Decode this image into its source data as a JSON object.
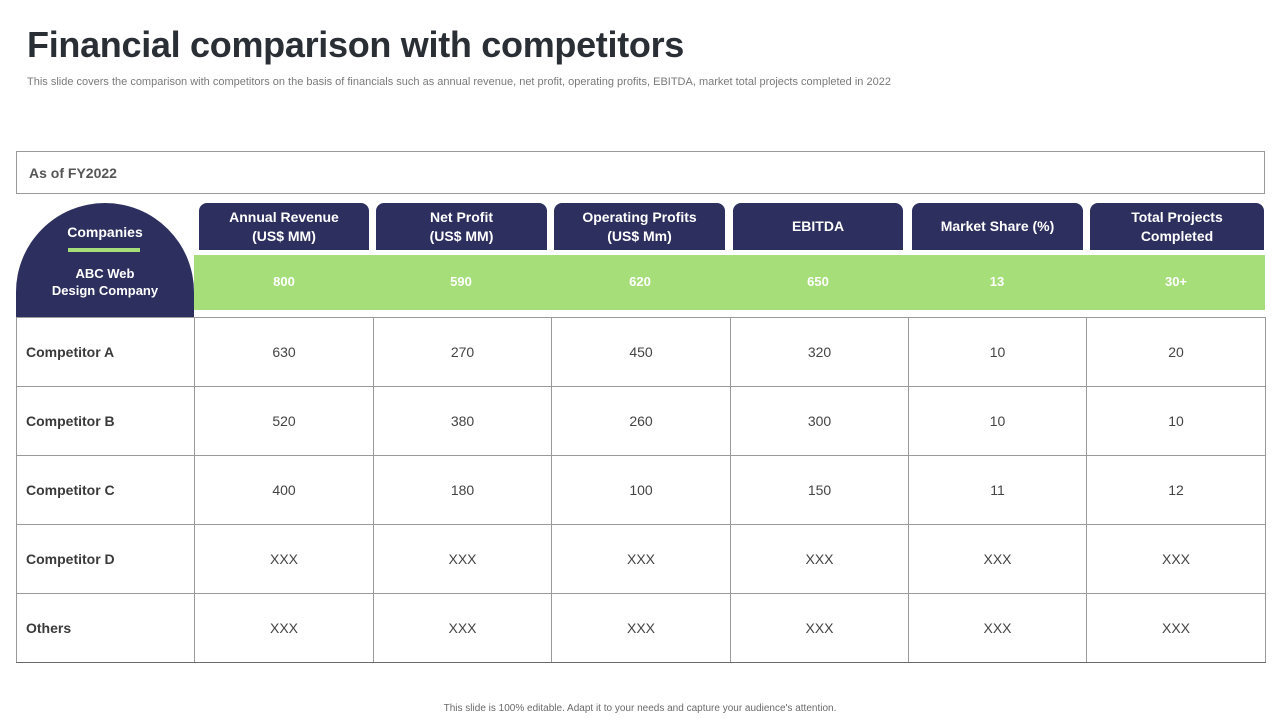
{
  "title": "Financial comparison with competitors",
  "subtitle": "This slide covers the comparison with competitors on the basis of financials such as annual revenue, net profit, operating profits, EBITDA, market total projects completed in 2022",
  "as_of": "As of FY2022",
  "companies_label": "Companies",
  "own_company": "ABC Web\nDesign Company",
  "columns": [
    "Annual Revenue\n(US$ MM)",
    "Net Profit\n(US$ MM)",
    "Operating Profits\n(US$ Mm)",
    "EBITDA",
    "Market Share (%)",
    "Total Projects\nCompleted"
  ],
  "own_values": [
    "800",
    "590",
    "620",
    "650",
    "13",
    "30+"
  ],
  "rows": [
    {
      "name": "Competitor A",
      "values": [
        "630",
        "270",
        "450",
        "320",
        "10",
        "20"
      ]
    },
    {
      "name": "Competitor B",
      "values": [
        "520",
        "380",
        "260",
        "300",
        "10",
        "10"
      ]
    },
    {
      "name": "Competitor C",
      "values": [
        "400",
        "180",
        "100",
        "150",
        "11",
        "12"
      ]
    },
    {
      "name": "Competitor D",
      "values": [
        "XXX",
        "XXX",
        "XXX",
        "XXX",
        "XXX",
        "XXX"
      ]
    },
    {
      "name": "Others",
      "values": [
        "XXX",
        "XXX",
        "XXX",
        "XXX",
        "XXX",
        "XXX"
      ]
    }
  ],
  "footer": "This slide is 100% editable.  Adapt it to your needs and capture your audience's attention.",
  "colors": {
    "navy": "#2d2f5e",
    "green": "#a6de7a"
  }
}
